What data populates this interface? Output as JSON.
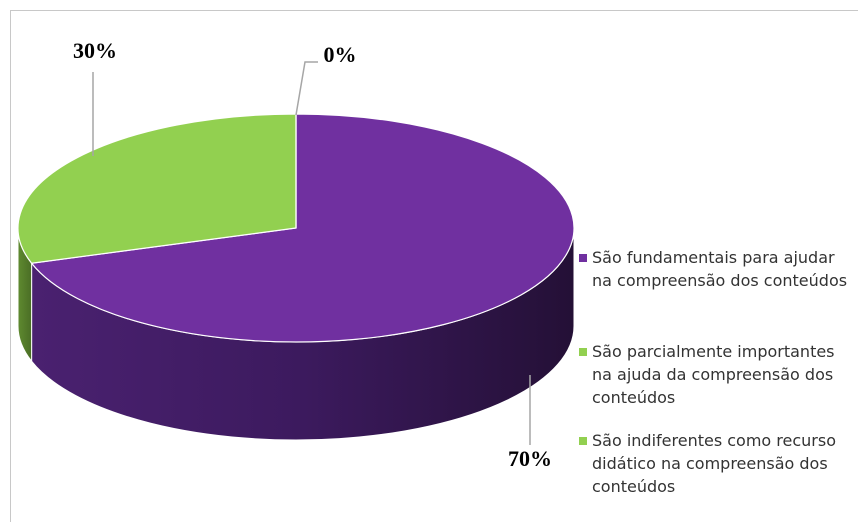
{
  "chart_data": {
    "type": "pie3d",
    "categories": [
      "São fundamentais para ajudar na compreensão dos conteúdos",
      "São parcialmente importantes na ajuda da compreensão dos conteúdos",
      "São indiferentes como recurso didático na compreensão dos conteúdos"
    ],
    "values": [
      70,
      30,
      0
    ],
    "value_labels": [
      "70%",
      "30%",
      "0%"
    ],
    "colors": [
      "#7030a0",
      "#92d050",
      "#92d050"
    ],
    "legend": "right"
  }
}
